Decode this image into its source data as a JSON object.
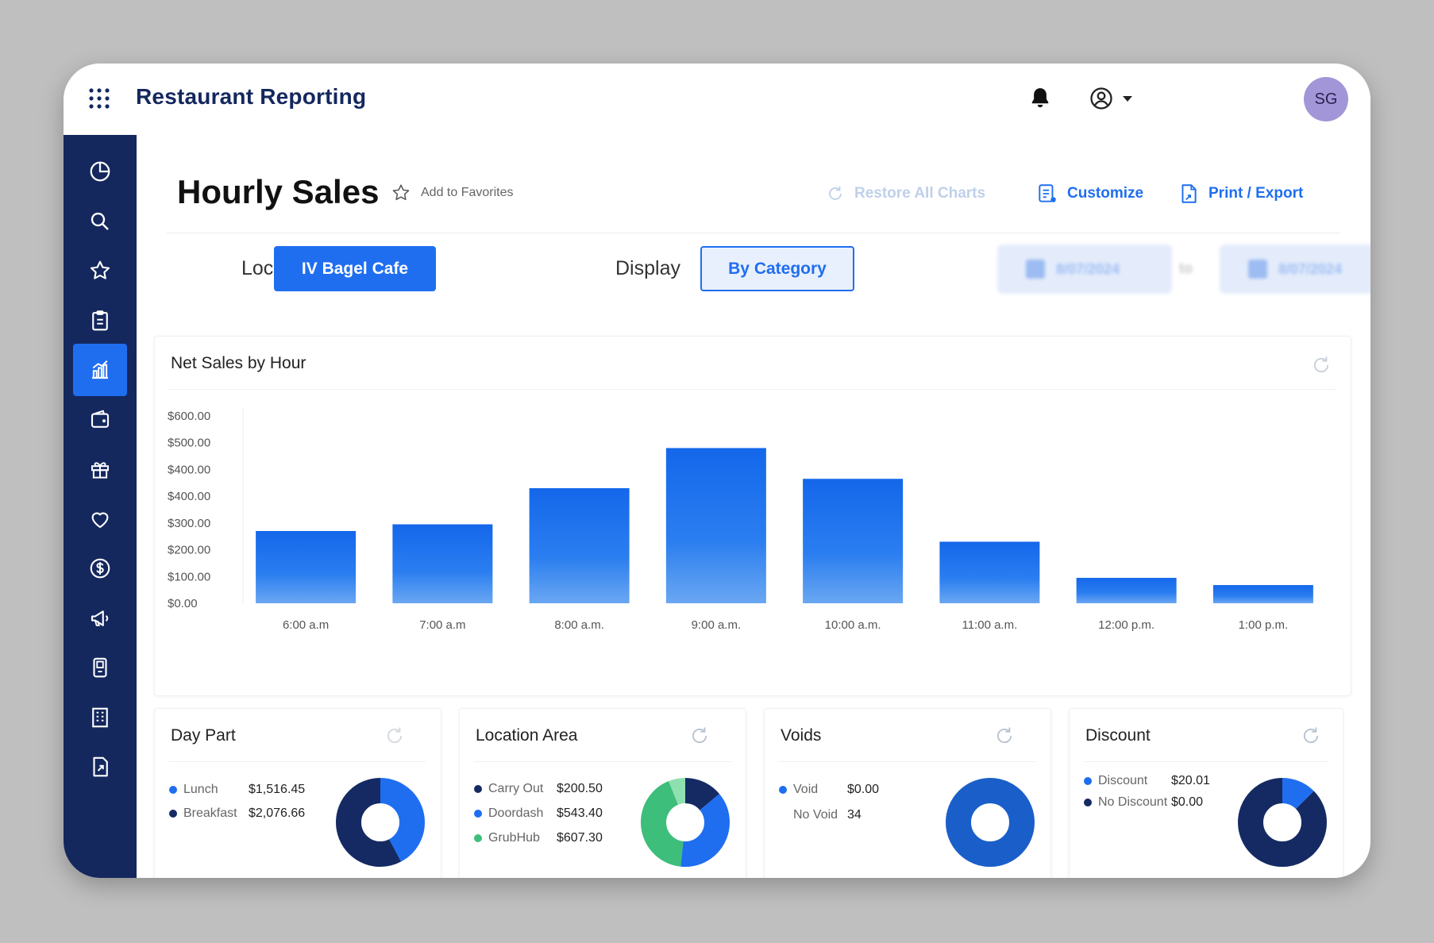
{
  "app": {
    "title": "Restaurant Reporting",
    "avatar_initials": "SG"
  },
  "colors": {
    "navy": "#14285e",
    "accent": "#1f6ef0",
    "dark_navy": "#152a63",
    "green": "#3dbe7a",
    "light_green": "#8fe0b0"
  },
  "sidebar": {
    "items": [
      {
        "icon": "pie-chart-icon",
        "active": false
      },
      {
        "icon": "search-icon",
        "active": false
      },
      {
        "icon": "star-icon",
        "active": false
      },
      {
        "icon": "clipboard-icon",
        "active": false
      },
      {
        "icon": "bar-chart-icon",
        "active": true
      },
      {
        "icon": "wallet-icon",
        "active": false
      },
      {
        "icon": "gift-icon",
        "active": false
      },
      {
        "icon": "heart-icon",
        "active": false
      },
      {
        "icon": "dollar-icon",
        "active": false
      },
      {
        "icon": "megaphone-icon",
        "active": false
      },
      {
        "icon": "kiosk-icon",
        "active": false
      },
      {
        "icon": "building-icon",
        "active": false
      },
      {
        "icon": "export-file-icon",
        "active": false
      }
    ]
  },
  "page": {
    "title": "Hourly Sales",
    "favorites_label": "Add to Favorites",
    "restore_label": "Restore All Charts",
    "customize_label": "Customize",
    "export_label": "Print / Export"
  },
  "filters": {
    "location_label": "Location",
    "location_value": "IV Bagel Cafe",
    "display_label": "Display",
    "display_value": "By Category",
    "date_from": "8/07/2024",
    "date_to_label": "to",
    "date_to": "8/07/2024"
  },
  "main_chart": {
    "title": "Net Sales by Hour"
  },
  "chart_data": [
    {
      "type": "bar",
      "title": "Net Sales by Hour",
      "categories": [
        "6:00 a.m",
        "7:00 a.m",
        "8:00 a.m.",
        "9:00 a.m.",
        "10:00 a.m.",
        "11:00 a.m.",
        "12:00 p.m.",
        "1:00 p.m."
      ],
      "values": [
        270,
        295,
        430,
        580,
        465,
        230,
        95,
        68
      ],
      "ytick_labels": [
        "$0.00",
        "$100.00",
        "$200.00",
        "$300.00",
        "$400.00",
        "$400.00",
        "$500.00",
        "$600.00"
      ],
      "ylim": [
        0,
        700
      ],
      "grid": false
    },
    {
      "type": "pie",
      "title": "Day Part",
      "labels": [
        "Lunch",
        "Breakfast"
      ],
      "display_values": [
        "$1,516.45",
        "$2,076.66"
      ],
      "values": [
        1516.45,
        2076.66
      ],
      "colors": [
        "#1f6ef0",
        "#152a63"
      ]
    },
    {
      "type": "pie",
      "title": "Location Area",
      "labels": [
        "Carry Out",
        "Doordash",
        "GrubHub"
      ],
      "display_values": [
        "$200.50",
        "$543.40",
        "$607.30"
      ],
      "values": [
        200.5,
        543.4,
        607.3
      ],
      "colors": [
        "#152a63",
        "#1f6ef0",
        "#3dbe7a"
      ]
    },
    {
      "type": "pie",
      "title": "Voids",
      "labels": [
        "Void",
        "No Void"
      ],
      "display_values": [
        "$0.00",
        "34"
      ],
      "values": [
        0,
        34
      ],
      "colors": [
        "#1f6ef0",
        "#1a5fc9"
      ]
    },
    {
      "type": "pie",
      "title": "Discount",
      "labels": [
        "Discount",
        "No Discount"
      ],
      "display_values": [
        "$20.01",
        "$0.00"
      ],
      "values": [
        20.01,
        0
      ],
      "colors": [
        "#1f6ef0",
        "#152a63"
      ]
    }
  ],
  "cards": {
    "day_part": {
      "title": "Day Part",
      "rows": [
        {
          "label": "Lunch",
          "value": "$1,516.45"
        },
        {
          "label": "Breakfast",
          "value": "$2,076.66"
        }
      ]
    },
    "location_area": {
      "title": "Location Area",
      "rows": [
        {
          "label": "Carry Out",
          "value": "$200.50"
        },
        {
          "label": "Doordash",
          "value": "$543.40"
        },
        {
          "label": "GrubHub",
          "value": "$607.30"
        }
      ]
    },
    "voids": {
      "title": "Voids",
      "rows": [
        {
          "label": "Void",
          "value": "$0.00"
        },
        {
          "label": "No Void",
          "value": "34"
        }
      ]
    },
    "discount": {
      "title": "Discount",
      "rows": [
        {
          "label": "Discount",
          "value": "$20.01"
        },
        {
          "label": "No Discount",
          "value": "$0.00"
        }
      ]
    }
  }
}
